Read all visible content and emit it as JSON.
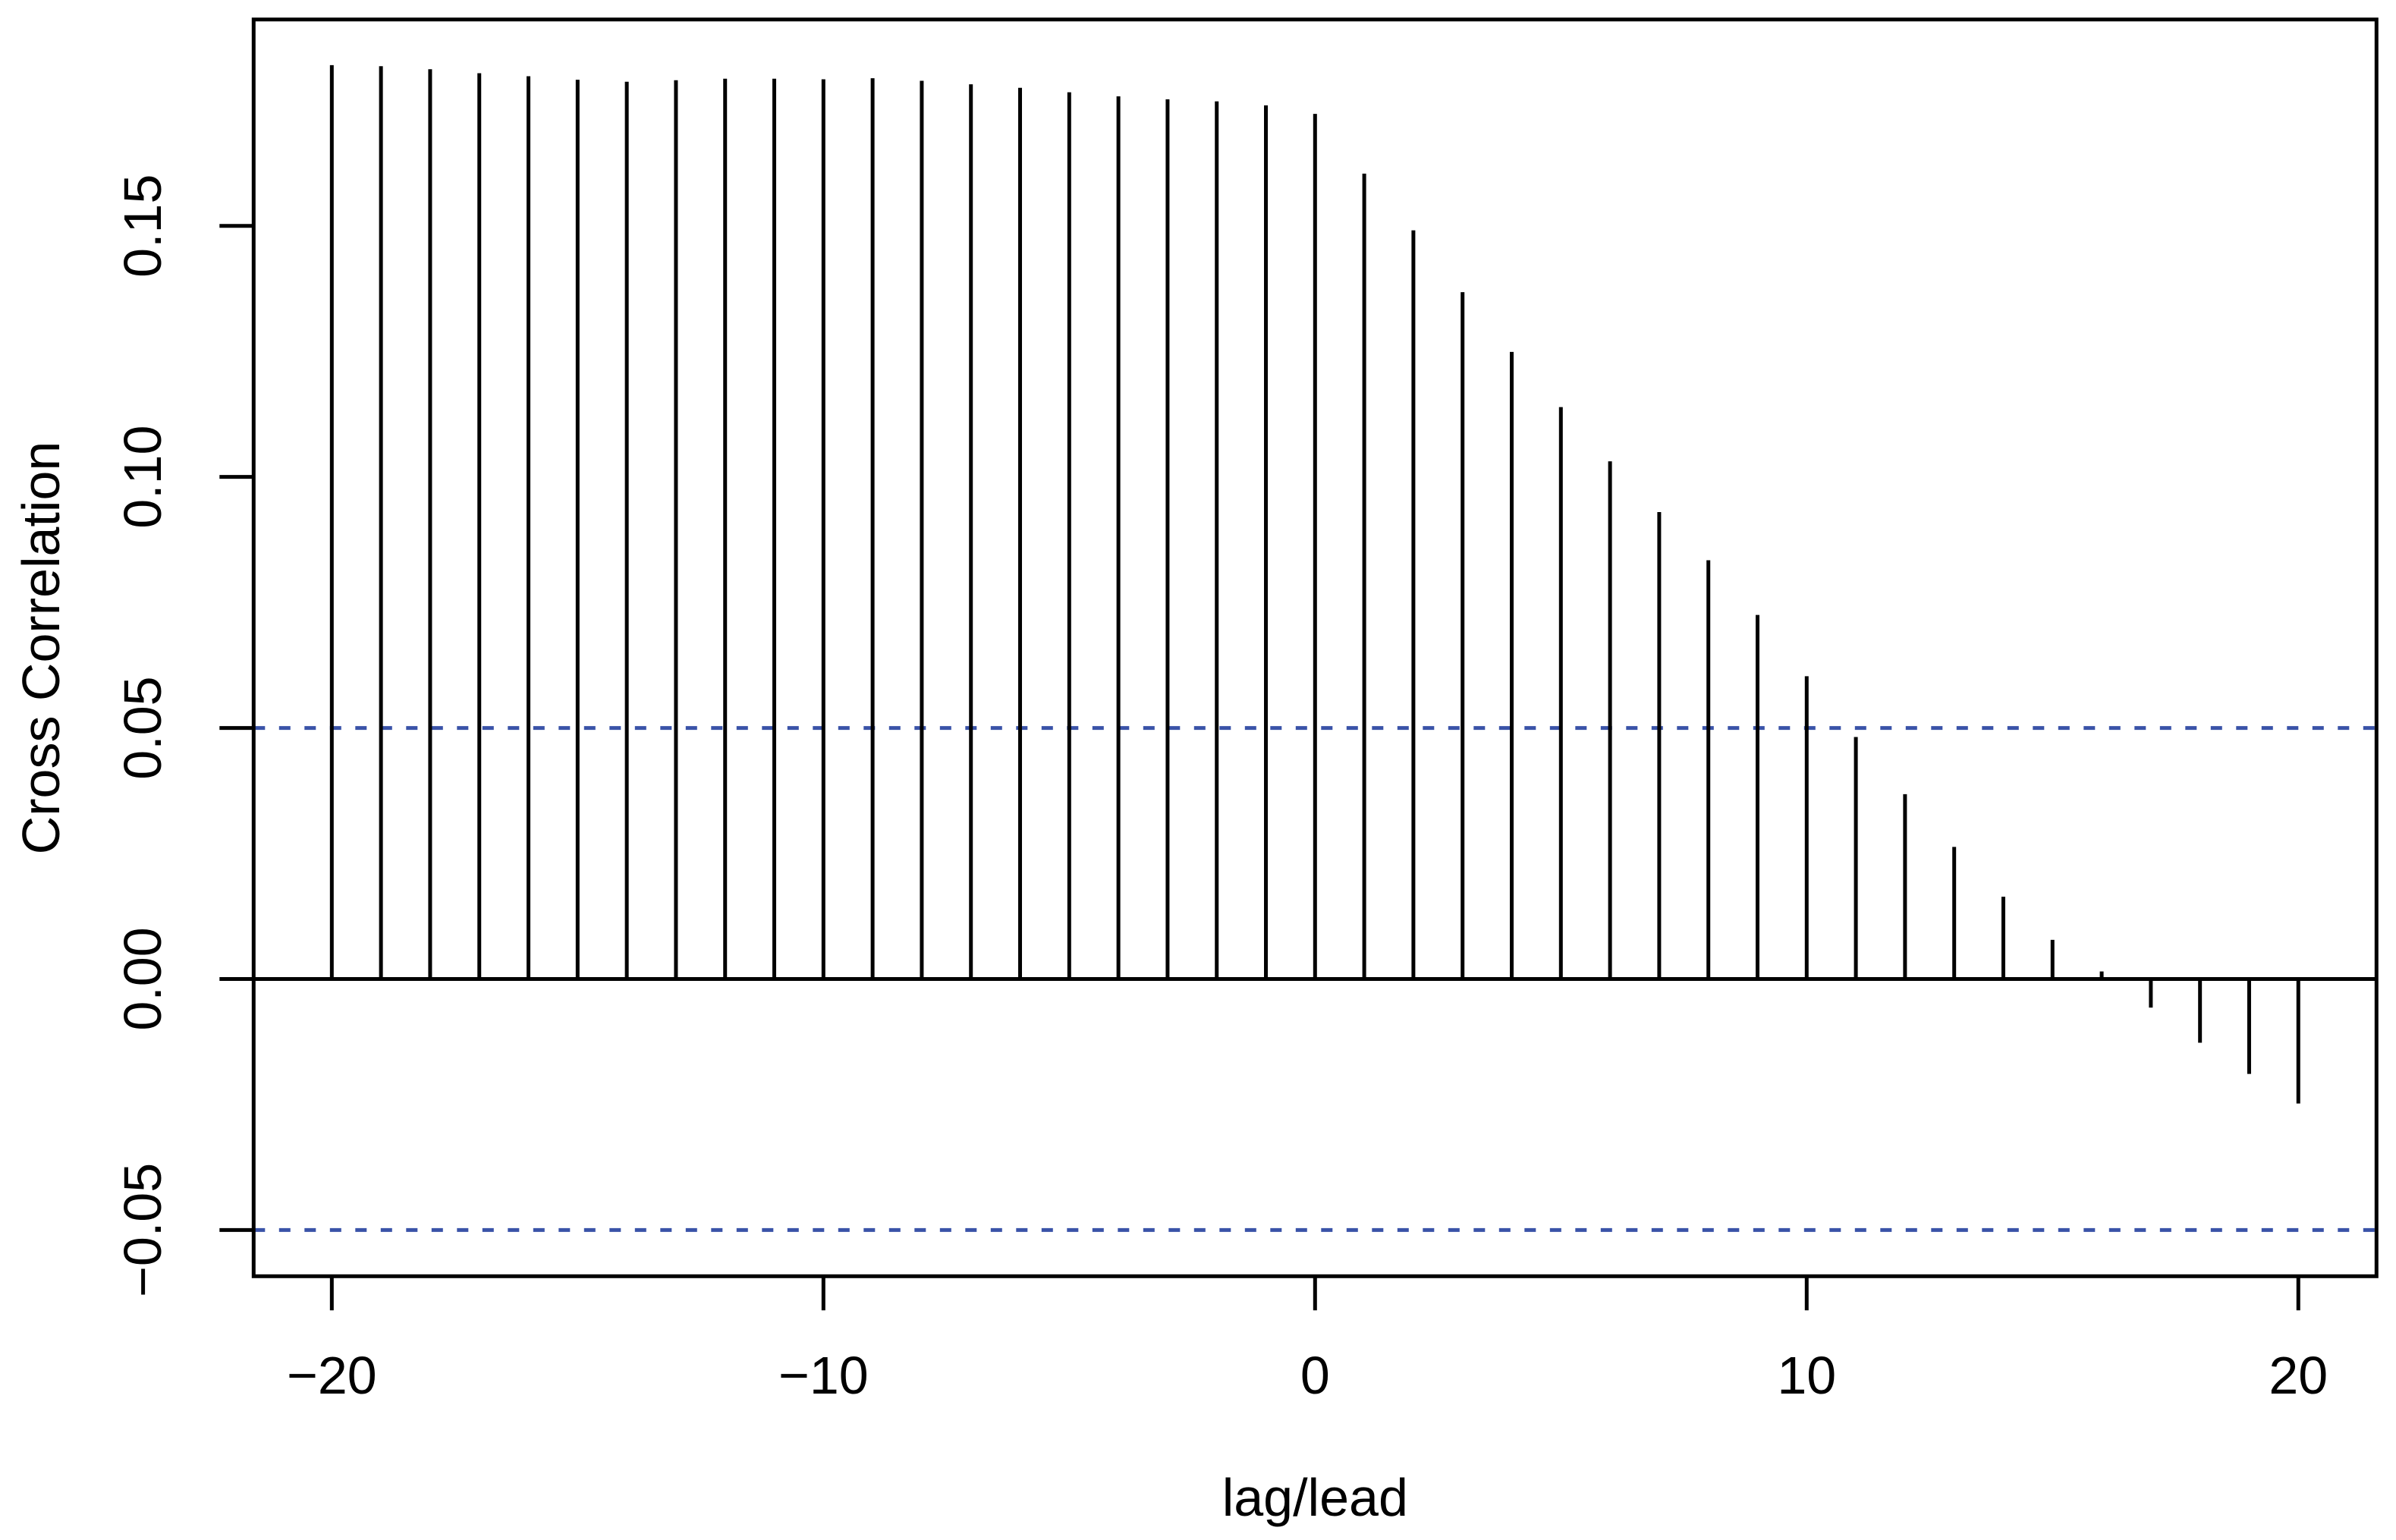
{
  "figure": {
    "kind": "R-style cross-correlation (ccf) lollipop plot",
    "background_color": "#ffffff"
  },
  "chart_data": {
    "type": "bar",
    "title": "",
    "xlabel": "lag/lead",
    "ylabel": "Cross Correlation",
    "x": [
      -20,
      -19,
      -18,
      -17,
      -16,
      -15,
      -14,
      -13,
      -12,
      -11,
      -10,
      -9,
      -8,
      -7,
      -6,
      -5,
      -4,
      -3,
      -2,
      -1,
      0,
      1,
      2,
      3,
      4,
      5,
      6,
      7,
      8,
      9,
      10,
      11,
      12,
      13,
      14,
      15,
      16,
      17,
      18,
      19,
      20
    ],
    "values": [
      0.182,
      0.1818,
      0.1812,
      0.1804,
      0.1798,
      0.1791,
      0.1787,
      0.179,
      0.1793,
      0.1793,
      0.1792,
      0.1794,
      0.1789,
      0.1782,
      0.1775,
      0.1766,
      0.1758,
      0.1752,
      0.1748,
      0.174,
      0.1723,
      0.1604,
      0.1491,
      0.1368,
      0.1249,
      0.1139,
      0.1031,
      0.093,
      0.0834,
      0.0725,
      0.0603,
      0.0482,
      0.0368,
      0.0263,
      0.0164,
      0.0078,
      0.0015,
      -0.0057,
      -0.0127,
      -0.0189,
      -0.0248
    ],
    "xlim": [
      -21.59,
      21.59
    ],
    "ylim": [
      -0.0592,
      0.1911
    ],
    "x_ticks": [
      {
        "value": -20,
        "label": "−20"
      },
      {
        "value": -10,
        "label": "−10"
      },
      {
        "value": 0,
        "label": "0"
      },
      {
        "value": 10,
        "label": "10"
      },
      {
        "value": 20,
        "label": "20"
      }
    ],
    "y_ticks": [
      {
        "value": -0.05,
        "label": "−0.05"
      },
      {
        "value": 0.0,
        "label": "0.00"
      },
      {
        "value": 0.05,
        "label": "0.05"
      },
      {
        "value": 0.1,
        "label": "0.10"
      },
      {
        "value": 0.15,
        "label": "0.15"
      }
    ],
    "zero_line": 0,
    "confidence_bounds": [
      0.05,
      -0.05
    ],
    "grid": "off",
    "legend": "none",
    "colors": {
      "bar": "#000000",
      "axis": "#000000",
      "confidence": "#3A53A8",
      "background": "#ffffff"
    }
  }
}
